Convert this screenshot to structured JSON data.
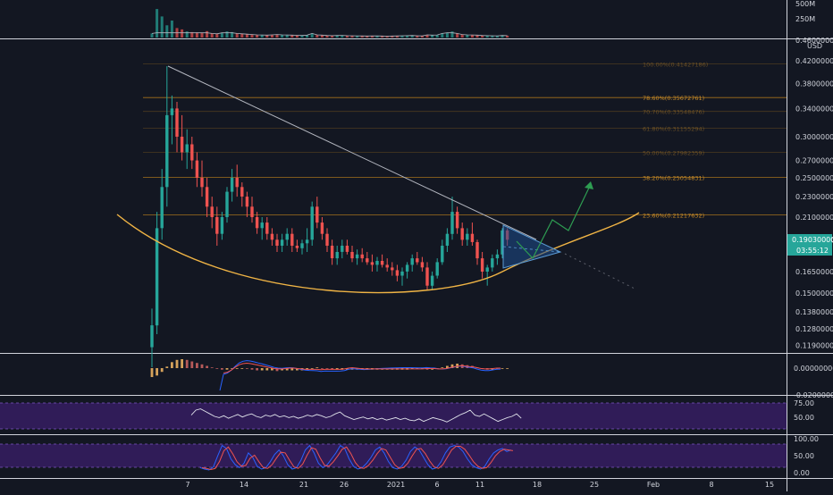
{
  "colors": {
    "background": "#131722",
    "pane_border": "#d1d4dc",
    "grid": "#1f2430",
    "up": "#26a69a",
    "down": "#ef5350",
    "fib_line": "#b57b1c",
    "fib_text": "#c58a2a",
    "cup_curve": "#f0b445",
    "trendline": "#b2b5be",
    "triangle_fill": "#1e4d8c",
    "triangle_stroke": "#5b9bd5",
    "projection_arrow": "#2e9d52",
    "rsi_band": "#3b1f6b",
    "rsi_line": "#e0e3eb",
    "macd_line": "#2962ff",
    "signal_line": "#ef5350",
    "stoch_k": "#2962ff",
    "stoch_d": "#ef5350",
    "price_badge": "#26a69a",
    "text": "#d1d4dc"
  },
  "volume_pane": {
    "tick_labels": [
      "500M",
      "250M"
    ]
  },
  "price_pane": {
    "currency_label": "USD",
    "top_tick": "0.46000000",
    "tick_labels": [
      "0.42000000",
      "0.38000000",
      "0.34000000",
      "0.30000000",
      "0.27000000",
      "0.25000000",
      "0.23000000",
      "0.21000000",
      "0.19000000",
      "0.16500000",
      "0.15000000",
      "0.13800000",
      "0.12800000",
      "0.11900000"
    ],
    "fib_labels": [
      {
        "text": "100.00%(0.41427186)",
        "level": 0.41427186,
        "faint": true
      },
      {
        "text": "78.60%(0.35672761)",
        "level": 0.35672761,
        "faint": false
      },
      {
        "text": "70.70%(0.33548476)",
        "level": 0.3354848,
        "faint": true
      },
      {
        "text": "61.80%(0.31155294)",
        "level": 0.3115529,
        "faint": true
      },
      {
        "text": "50.00%(0.27982359)",
        "level": 0.2798236,
        "faint": true
      },
      {
        "text": "38.20%(0.25054831)",
        "level": 0.25054831,
        "faint": false
      },
      {
        "text": "23.60%(0.21217632)",
        "level": 0.21217632,
        "faint": false
      }
    ],
    "price_badge": "0.19030000",
    "countdown_badge": "03:55:12"
  },
  "macd_pane": {
    "tick_label": "0.00000000",
    "bottom_tick": "-0.02000000"
  },
  "rsi_pane": {
    "tick_labels": [
      "75.00",
      "50.00"
    ]
  },
  "stoch_pane": {
    "tick_labels": [
      "100.00",
      "50.00",
      "0.00"
    ]
  },
  "time_axis": {
    "labels": [
      "7",
      "14",
      "21",
      "26",
      "2021",
      "6",
      "11",
      "18",
      "25",
      "Feb",
      "8",
      "15"
    ]
  },
  "chart_data": {
    "type": "candlestick",
    "interval": "4h",
    "ylim": [
      0.11,
      0.46
    ],
    "y_scale": "log",
    "candles": [
      [
        0.118,
        0.14,
        0.108,
        0.13
      ],
      [
        0.13,
        0.215,
        0.125,
        0.2
      ],
      [
        0.2,
        0.26,
        0.19,
        0.24
      ],
      [
        0.24,
        0.41,
        0.22,
        0.33
      ],
      [
        0.33,
        0.36,
        0.29,
        0.34
      ],
      [
        0.34,
        0.35,
        0.28,
        0.3
      ],
      [
        0.3,
        0.33,
        0.27,
        0.28
      ],
      [
        0.28,
        0.31,
        0.26,
        0.29
      ],
      [
        0.29,
        0.3,
        0.26,
        0.27
      ],
      [
        0.27,
        0.28,
        0.24,
        0.25
      ],
      [
        0.25,
        0.27,
        0.23,
        0.24
      ],
      [
        0.24,
        0.25,
        0.21,
        0.22
      ],
      [
        0.22,
        0.23,
        0.2,
        0.21
      ],
      [
        0.21,
        0.22,
        0.185,
        0.195
      ],
      [
        0.195,
        0.215,
        0.19,
        0.21
      ],
      [
        0.21,
        0.24,
        0.205,
        0.235
      ],
      [
        0.235,
        0.26,
        0.225,
        0.25
      ],
      [
        0.25,
        0.265,
        0.23,
        0.24
      ],
      [
        0.24,
        0.245,
        0.22,
        0.23
      ],
      [
        0.23,
        0.235,
        0.21,
        0.22
      ],
      [
        0.22,
        0.23,
        0.205,
        0.21
      ],
      [
        0.21,
        0.215,
        0.195,
        0.2
      ],
      [
        0.2,
        0.21,
        0.19,
        0.205
      ],
      [
        0.205,
        0.21,
        0.19,
        0.195
      ],
      [
        0.195,
        0.2,
        0.185,
        0.19
      ],
      [
        0.19,
        0.195,
        0.18,
        0.185
      ],
      [
        0.185,
        0.195,
        0.18,
        0.19
      ],
      [
        0.19,
        0.2,
        0.185,
        0.195
      ],
      [
        0.195,
        0.2,
        0.18,
        0.185
      ],
      [
        0.185,
        0.19,
        0.18,
        0.183
      ],
      [
        0.183,
        0.19,
        0.178,
        0.187
      ],
      [
        0.187,
        0.2,
        0.18,
        0.19
      ],
      [
        0.19,
        0.225,
        0.185,
        0.22
      ],
      [
        0.22,
        0.23,
        0.2,
        0.205
      ],
      [
        0.205,
        0.21,
        0.19,
        0.195
      ],
      [
        0.195,
        0.2,
        0.18,
        0.185
      ],
      [
        0.185,
        0.19,
        0.17,
        0.175
      ],
      [
        0.175,
        0.185,
        0.17,
        0.18
      ],
      [
        0.18,
        0.19,
        0.175,
        0.185
      ],
      [
        0.185,
        0.19,
        0.178,
        0.18
      ],
      [
        0.18,
        0.185,
        0.172,
        0.175
      ],
      [
        0.175,
        0.182,
        0.17,
        0.178
      ],
      [
        0.178,
        0.183,
        0.172,
        0.175
      ],
      [
        0.175,
        0.18,
        0.17,
        0.172
      ],
      [
        0.172,
        0.178,
        0.165,
        0.17
      ],
      [
        0.17,
        0.176,
        0.165,
        0.173
      ],
      [
        0.173,
        0.178,
        0.168,
        0.17
      ],
      [
        0.17,
        0.175,
        0.165,
        0.168
      ],
      [
        0.168,
        0.172,
        0.162,
        0.166
      ],
      [
        0.166,
        0.17,
        0.158,
        0.162
      ],
      [
        0.162,
        0.168,
        0.155,
        0.165
      ],
      [
        0.165,
        0.172,
        0.16,
        0.17
      ],
      [
        0.17,
        0.178,
        0.165,
        0.175
      ],
      [
        0.175,
        0.18,
        0.17,
        0.172
      ],
      [
        0.172,
        0.176,
        0.165,
        0.168
      ],
      [
        0.168,
        0.172,
        0.152,
        0.155
      ],
      [
        0.155,
        0.165,
        0.152,
        0.162
      ],
      [
        0.162,
        0.175,
        0.16,
        0.172
      ],
      [
        0.172,
        0.19,
        0.17,
        0.185
      ],
      [
        0.185,
        0.2,
        0.18,
        0.195
      ],
      [
        0.195,
        0.23,
        0.19,
        0.215
      ],
      [
        0.215,
        0.22,
        0.195,
        0.2
      ],
      [
        0.2,
        0.205,
        0.185,
        0.19
      ],
      [
        0.19,
        0.2,
        0.185,
        0.195
      ],
      [
        0.195,
        0.205,
        0.185,
        0.188
      ],
      [
        0.188,
        0.19,
        0.17,
        0.175
      ],
      [
        0.175,
        0.18,
        0.16,
        0.165
      ],
      [
        0.165,
        0.17,
        0.155,
        0.168
      ],
      [
        0.168,
        0.178,
        0.165,
        0.175
      ],
      [
        0.175,
        0.182,
        0.17,
        0.178
      ],
      [
        0.178,
        0.2,
        0.175,
        0.198
      ],
      [
        0.198,
        0.2,
        0.185,
        0.19
      ]
    ],
    "volumes": [
      60,
      420,
      310,
      180,
      250,
      140,
      120,
      90,
      80,
      75,
      70,
      95,
      60,
      55,
      70,
      90,
      80,
      60,
      55,
      50,
      45,
      40,
      38,
      35,
      40,
      45,
      40,
      38,
      35,
      33,
      30,
      35,
      60,
      40,
      35,
      30,
      28,
      30,
      32,
      28,
      26,
      25,
      24,
      22,
      25,
      24,
      22,
      20,
      22,
      24,
      26,
      28,
      30,
      26,
      24,
      40,
      35,
      38,
      60,
      70,
      90,
      60,
      45,
      40,
      38,
      35,
      30,
      28,
      26,
      25,
      30,
      28
    ],
    "macd": [
      -0.012,
      -0.01,
      -0.005,
      0.002,
      0.008,
      0.011,
      0.012,
      0.011,
      0.009,
      0.007,
      0.005,
      0.003,
      0.001,
      -0.001,
      -0.002,
      -0.002,
      -0.001,
      0,
      0,
      -0.001,
      -0.002,
      -0.003,
      -0.003,
      -0.003,
      -0.003,
      -0.004,
      -0.003,
      -0.003,
      -0.003,
      -0.003,
      -0.003,
      -0.002,
      0,
      0.001,
      0,
      -0.001,
      -0.002,
      -0.002,
      -0.002,
      -0.002,
      -0.002,
      -0.002,
      -0.002,
      -0.002,
      -0.002,
      -0.002,
      -0.002,
      -0.002,
      -0.002,
      -0.002,
      -0.002,
      -0.002,
      -0.001,
      -0.001,
      -0.001,
      -0.002,
      -0.002,
      -0.001,
      0.001,
      0.003,
      0.005,
      0.006,
      0.005,
      0.004,
      0.003,
      0.001,
      -0.001,
      -0.002,
      -0.002,
      -0.001,
      0,
      0
    ],
    "rsi": [
      62,
      70,
      72,
      68,
      64,
      60,
      58,
      61,
      57,
      60,
      63,
      59,
      62,
      64,
      60,
      58,
      62,
      60,
      63,
      59,
      61,
      58,
      60,
      57,
      59,
      62,
      60,
      63,
      61,
      58,
      60,
      64,
      67,
      61,
      58,
      55,
      57,
      59,
      56,
      58,
      55,
      57,
      54,
      56,
      58,
      55,
      57,
      54,
      53,
      56,
      52,
      55,
      58,
      56,
      54,
      51,
      55,
      59,
      63,
      66,
      70,
      62,
      60,
      64,
      60,
      56,
      52,
      55,
      58,
      60,
      64,
      57
    ],
    "stoch_k": [
      20,
      15,
      12,
      22,
      60,
      95,
      85,
      50,
      30,
      20,
      35,
      70,
      55,
      25,
      15,
      20,
      40,
      65,
      80,
      60,
      30,
      15,
      20,
      45,
      80,
      95,
      70,
      35,
      20,
      30,
      50,
      70,
      95,
      85,
      50,
      25,
      15,
      20,
      35,
      55,
      80,
      90,
      70,
      40,
      20,
      15,
      25,
      45,
      75,
      90,
      80,
      55,
      30,
      15,
      20,
      40,
      70,
      90,
      95,
      90,
      75,
      50,
      30,
      20,
      15,
      25,
      50,
      70,
      80,
      85,
      75,
      80
    ],
    "fib_levels": [
      0.41427186,
      0.35672761,
      0.3354848,
      0.3115529,
      0.2798236,
      0.25054831,
      0.21217632
    ]
  }
}
